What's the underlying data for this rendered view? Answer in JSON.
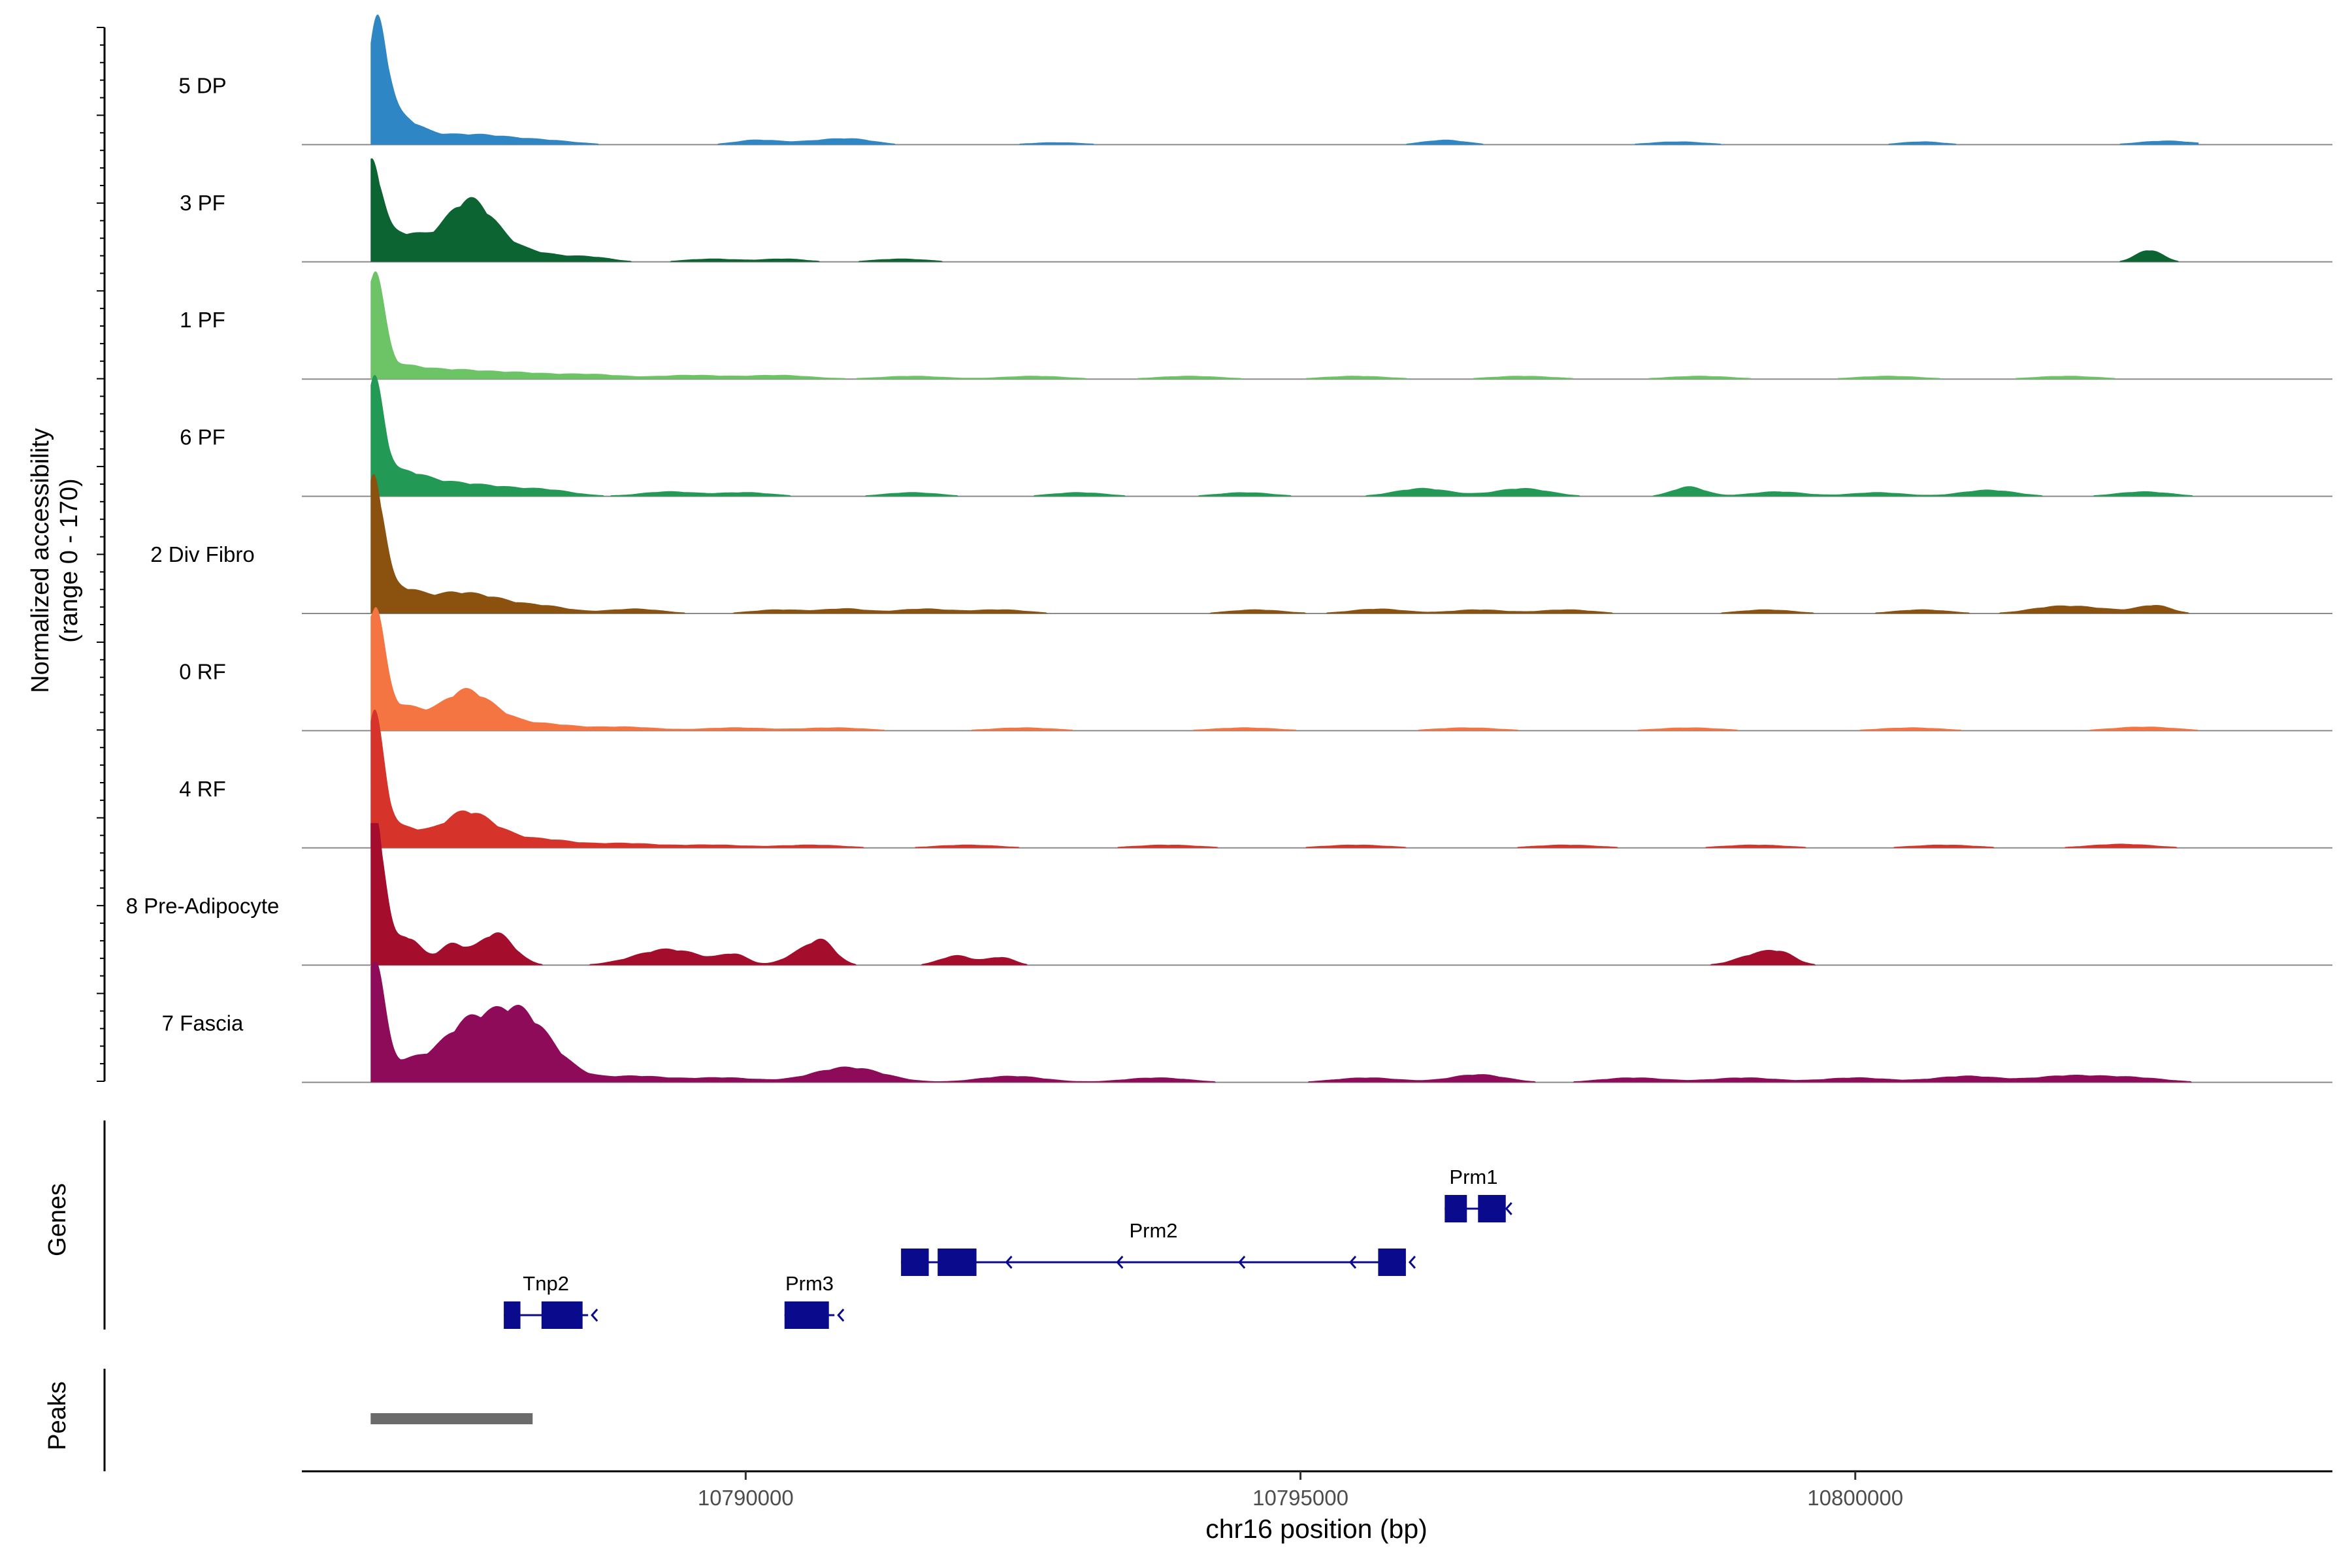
{
  "chart_data": {
    "type": "area",
    "title": "",
    "xlabel": "chr16 position (bp)",
    "ylabel": "Normalized accessibility",
    "ylabel_sub": "(range 0 - 170)",
    "xlim": [
      10786000,
      10804300
    ],
    "ylim": [
      0,
      170
    ],
    "x_ticks": [
      10790000,
      10795000,
      10800000
    ],
    "x_tick_labels": [
      "10790000",
      "10795000",
      "10800000"
    ],
    "track_labels": {
      "genes": "Genes",
      "peaks": "Peaks"
    },
    "series": [
      {
        "name": "5 DP",
        "color": "#2f86c4",
        "peaks": [
          [
            10786680,
            135,
            90
          ],
          [
            10786850,
            30,
            180
          ],
          [
            10787200,
            10,
            300
          ],
          [
            10787650,
            8,
            250
          ],
          [
            10788150,
            6,
            300
          ],
          [
            10790100,
            6,
            200
          ],
          [
            10790700,
            5,
            250
          ],
          [
            10791000,
            5,
            200
          ],
          [
            10792800,
            3,
            250
          ],
          [
            10796300,
            6,
            200
          ],
          [
            10798400,
            4,
            250
          ],
          [
            10800600,
            4,
            200
          ],
          [
            10802800,
            5,
            250
          ]
        ]
      },
      {
        "name": "3 PF",
        "color": "#0b6432",
        "peaks": [
          [
            10786630,
            110,
            90
          ],
          [
            10786900,
            35,
            220
          ],
          [
            10787450,
            55,
            200
          ],
          [
            10787650,
            30,
            200
          ],
          [
            10788050,
            12,
            250
          ],
          [
            10788600,
            6,
            200
          ],
          [
            10789700,
            4,
            250
          ],
          [
            10790350,
            4,
            200
          ],
          [
            10791400,
            4,
            250
          ],
          [
            10802650,
            15,
            120
          ]
        ]
      },
      {
        "name": "1 PF",
        "color": "#6cc467",
        "peaks": [
          [
            10786650,
            130,
            90
          ],
          [
            10786900,
            15,
            200
          ],
          [
            10787350,
            10,
            250
          ],
          [
            10787900,
            8,
            300
          ],
          [
            10788600,
            6,
            300
          ],
          [
            10789500,
            5,
            300
          ],
          [
            10790300,
            5,
            300
          ],
          [
            10791500,
            4,
            300
          ],
          [
            10792600,
            4,
            300
          ],
          [
            10794000,
            4,
            300
          ],
          [
            10795500,
            4,
            300
          ],
          [
            10797000,
            4,
            300
          ],
          [
            10798600,
            4,
            300
          ],
          [
            10800300,
            4,
            300
          ],
          [
            10801900,
            4,
            300
          ]
        ]
      },
      {
        "name": "6 PF",
        "color": "#229a55",
        "peaks": [
          [
            10786650,
            135,
            90
          ],
          [
            10786900,
            25,
            180
          ],
          [
            10787250,
            15,
            250
          ],
          [
            10787700,
            10,
            250
          ],
          [
            10788200,
            8,
            250
          ],
          [
            10789300,
            6,
            250
          ],
          [
            10790000,
            5,
            250
          ],
          [
            10791500,
            5,
            250
          ],
          [
            10793000,
            5,
            250
          ],
          [
            10794500,
            5,
            250
          ],
          [
            10796100,
            10,
            250
          ],
          [
            10797000,
            10,
            250
          ],
          [
            10798500,
            12,
            150
          ],
          [
            10799300,
            6,
            250
          ],
          [
            10800200,
            5,
            250
          ],
          [
            10801200,
            8,
            250
          ],
          [
            10802600,
            6,
            250
          ]
        ]
      },
      {
        "name": "2 Div Fibro",
        "color": "#8b510e",
        "peaks": [
          [
            10786650,
            160,
            90
          ],
          [
            10786900,
            30,
            180
          ],
          [
            10787350,
            22,
            200
          ],
          [
            10787700,
            15,
            200
          ],
          [
            10788150,
            10,
            250
          ],
          [
            10789000,
            6,
            250
          ],
          [
            10790300,
            5,
            250
          ],
          [
            10790900,
            6,
            200
          ],
          [
            10791600,
            6,
            250
          ],
          [
            10792300,
            5,
            250
          ],
          [
            10794600,
            5,
            250
          ],
          [
            10795700,
            6,
            250
          ],
          [
            10796600,
            5,
            250
          ],
          [
            10797400,
            5,
            250
          ],
          [
            10799200,
            5,
            250
          ],
          [
            10800600,
            5,
            250
          ],
          [
            10801800,
            8,
            250
          ],
          [
            10802200,
            5,
            250
          ],
          [
            10802700,
            10,
            150
          ]
        ]
      },
      {
        "name": "0 RF",
        "color": "#f47442",
        "peaks": [
          [
            10786650,
            145,
            90
          ],
          [
            10786900,
            30,
            200
          ],
          [
            10787450,
            45,
            200
          ],
          [
            10787750,
            15,
            200
          ],
          [
            10788200,
            8,
            250
          ],
          [
            10788900,
            5,
            300
          ],
          [
            10789900,
            4,
            300
          ],
          [
            10790800,
            4,
            300
          ],
          [
            10792500,
            4,
            300
          ],
          [
            10794500,
            4,
            300
          ],
          [
            10796500,
            4,
            300
          ],
          [
            10798500,
            4,
            300
          ],
          [
            10800500,
            4,
            300
          ],
          [
            10802600,
            5,
            300
          ]
        ]
      },
      {
        "name": "4 RF",
        "color": "#d6342b",
        "peaks": [
          [
            10786650,
            155,
            90
          ],
          [
            10786900,
            25,
            200
          ],
          [
            10787450,
            40,
            200
          ],
          [
            10787750,
            15,
            200
          ],
          [
            10788200,
            10,
            250
          ],
          [
            10788900,
            6,
            300
          ],
          [
            10789700,
            4,
            300
          ],
          [
            10790600,
            4,
            300
          ],
          [
            10792000,
            4,
            300
          ],
          [
            10793800,
            4,
            300
          ],
          [
            10795500,
            4,
            300
          ],
          [
            10797400,
            4,
            300
          ],
          [
            10799100,
            4,
            300
          ],
          [
            10800800,
            4,
            300
          ],
          [
            10802400,
            5,
            300
          ]
        ]
      },
      {
        "name": "8 Pre-Adipocyte",
        "color": "#a50d2d",
        "peaks": [
          [
            10786650,
            200,
            90
          ],
          [
            10786950,
            35,
            120
          ],
          [
            10787350,
            25,
            120
          ],
          [
            10787750,
            40,
            160
          ],
          [
            10789300,
            20,
            300
          ],
          [
            10789900,
            12,
            120
          ],
          [
            10790500,
            15,
            150
          ],
          [
            10790700,
            25,
            120
          ],
          [
            10791900,
            12,
            150
          ],
          [
            10792300,
            10,
            120
          ],
          [
            10799150,
            15,
            200
          ],
          [
            10799350,
            8,
            120
          ]
        ]
      },
      {
        "name": "7 Fascia",
        "color": "#8e0b5a",
        "peaks": [
          [
            10786650,
            150,
            90
          ],
          [
            10786950,
            25,
            200
          ],
          [
            10787450,
            60,
            220
          ],
          [
            10787900,
            75,
            250
          ],
          [
            10788200,
            25,
            250
          ],
          [
            10789000,
            8,
            300
          ],
          [
            10789800,
            6,
            300
          ],
          [
            10790800,
            8,
            300
          ],
          [
            10791000,
            12,
            300
          ],
          [
            10792400,
            8,
            300
          ],
          [
            10793700,
            6,
            300
          ],
          [
            10795600,
            6,
            300
          ],
          [
            10796600,
            10,
            250
          ],
          [
            10798000,
            6,
            300
          ],
          [
            10799000,
            6,
            300
          ],
          [
            10800000,
            6,
            300
          ],
          [
            10801000,
            8,
            300
          ],
          [
            10801900,
            8,
            300
          ],
          [
            10802500,
            6,
            300
          ]
        ]
      }
    ],
    "genes": [
      {
        "name": "Tnp2",
        "strand": "-",
        "start": 10787820,
        "end": 10788580,
        "exons": [
          [
            10787820,
            10787970
          ],
          [
            10788160,
            10788530
          ]
        ],
        "row": 2
      },
      {
        "name": "Prm3",
        "strand": "-",
        "start": 10790350,
        "end": 10790800,
        "exons": [
          [
            10790350,
            10790750
          ]
        ],
        "row": 2
      },
      {
        "name": "Prm2",
        "strand": "-",
        "start": 10791400,
        "end": 10795950,
        "exons": [
          [
            10791400,
            10791650
          ],
          [
            10791730,
            10792080
          ],
          [
            10795700,
            10795950
          ]
        ],
        "row": 1
      },
      {
        "name": "Prm1",
        "strand": "-",
        "start": 10796300,
        "end": 10796820,
        "exons": [
          [
            10796300,
            10796500
          ],
          [
            10796600,
            10796850
          ]
        ],
        "row": 0
      }
    ],
    "peaks_track": [
      [
        10786620,
        10788080
      ]
    ]
  }
}
